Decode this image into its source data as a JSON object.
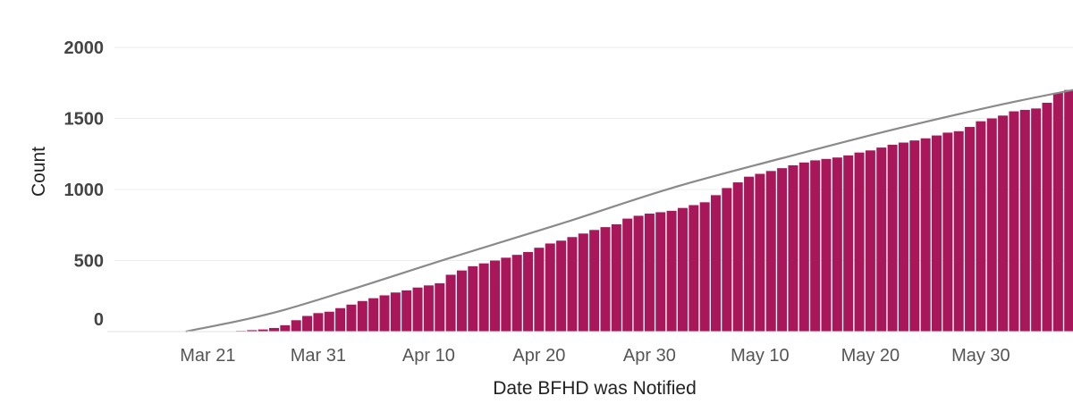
{
  "chart_data": {
    "type": "bar",
    "xlabel": "Date BFHD was Notified",
    "ylabel": "Count",
    "ylim": [
      0,
      2000
    ],
    "y_ticks": [
      0,
      500,
      1000,
      1500,
      2000
    ],
    "x_start": "Mar 13",
    "x_end": "Jun 8",
    "x_ticks": [
      {
        "label": "Mar 21",
        "day_index": 8
      },
      {
        "label": "Mar 31",
        "day_index": 18
      },
      {
        "label": "Apr 10",
        "day_index": 28
      },
      {
        "label": "Apr 20",
        "day_index": 38
      },
      {
        "label": "Apr 30",
        "day_index": 48
      },
      {
        "label": "May 10",
        "day_index": 58
      },
      {
        "label": "May 20",
        "day_index": 68
      },
      {
        "label": "May 30",
        "day_index": 78
      }
    ],
    "bar_color": "#a8175a",
    "trend_color": "#8a8a8a",
    "grid": true,
    "series": [
      {
        "start_day_index": 11,
        "values": [
          5,
          10,
          15,
          25,
          45,
          80,
          110,
          130,
          140,
          165,
          190,
          215,
          235,
          255,
          275,
          290,
          310,
          325,
          340,
          400,
          430,
          460,
          480,
          500,
          520,
          540,
          560,
          590,
          620,
          640,
          665,
          690,
          715,
          735,
          755,
          795,
          815,
          830,
          840,
          850,
          870,
          890,
          910,
          960,
          1010,
          1050,
          1090,
          1110,
          1130,
          1150,
          1170,
          1190,
          1205,
          1215,
          1225,
          1240,
          1260,
          1275,
          1295,
          1315,
          1330,
          1345,
          1360,
          1380,
          1400,
          1410,
          1440,
          1480,
          1500,
          1520,
          1550,
          1560,
          1570,
          1610,
          1680,
          1700,
          1730,
          1780
        ]
      },
      {
        "type": "line",
        "x_day_index": [
          6,
          15,
          30,
          40,
          50,
          60,
          70,
          80,
          88
        ],
        "values": [
          0,
          155,
          520,
          760,
          1010,
          1220,
          1420,
          1600,
          1725
        ]
      }
    ]
  }
}
